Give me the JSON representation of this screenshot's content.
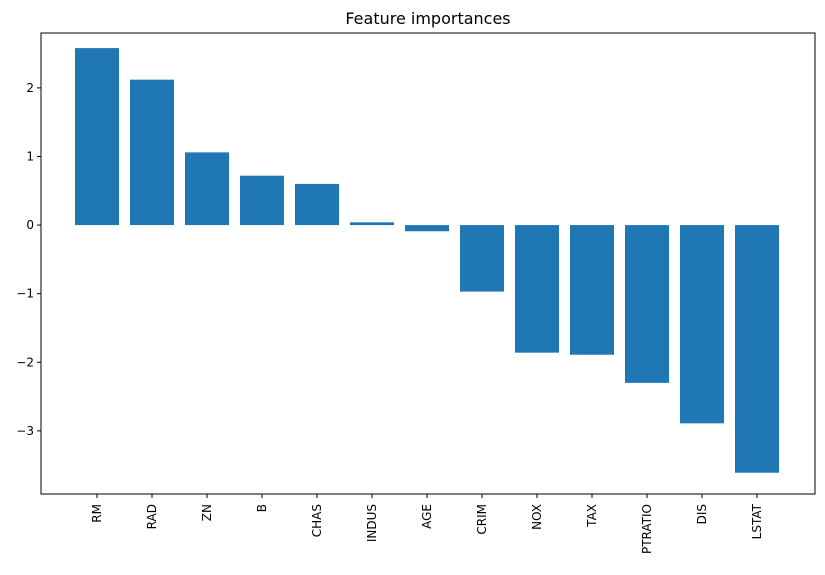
{
  "chart_data": {
    "type": "bar",
    "title": "Feature importances",
    "xlabel": "",
    "ylabel": "",
    "categories": [
      "RM",
      "RAD",
      "ZN",
      "B",
      "CHAS",
      "INDUS",
      "AGE",
      "CRIM",
      "NOX",
      "TAX",
      "PTRATIO",
      "DIS",
      "LSTAT"
    ],
    "values": [
      2.58,
      2.12,
      1.06,
      0.72,
      0.6,
      0.04,
      -0.09,
      -0.97,
      -1.86,
      -1.89,
      -2.3,
      -2.89,
      -3.61
    ],
    "ylim": [
      -3.92,
      2.8
    ],
    "yticks": [
      2,
      1,
      0,
      -1,
      -2,
      -3
    ],
    "ytick_labels": [
      "2",
      "1",
      "0",
      "−1",
      "−2",
      "−3"
    ],
    "bar_color": "#1f77b4",
    "grid": false,
    "legend": "none"
  }
}
